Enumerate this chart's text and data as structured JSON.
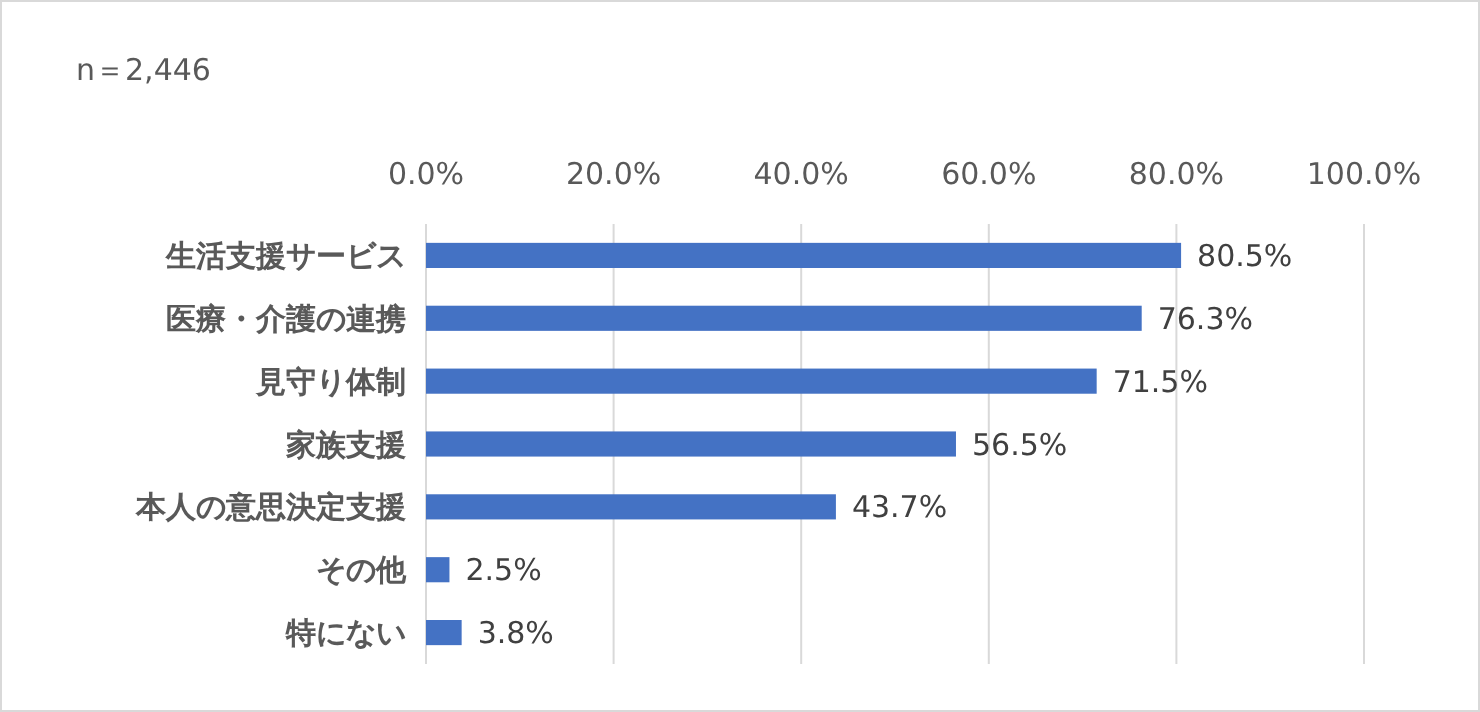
{
  "chart_data": {
    "type": "bar",
    "orientation": "horizontal",
    "annotations": [
      "n＝2,446"
    ],
    "categories": [
      "生活支援サービス",
      "医療・介護の連携",
      "見守り体制",
      "家族支援",
      "本人の意思決定支援",
      "その他",
      "特にない"
    ],
    "values": [
      80.5,
      76.3,
      71.5,
      56.5,
      43.7,
      2.5,
      3.8
    ],
    "value_labels": [
      "80.5%",
      "76.3%",
      "71.5%",
      "56.5%",
      "43.7%",
      "2.5%",
      "3.8%"
    ],
    "color": "#4472c4",
    "xlim": [
      0,
      100
    ],
    "xticks": [
      {
        "value": 0,
        "label": "0.0%"
      },
      {
        "value": 20,
        "label": "20.0%"
      },
      {
        "value": 40,
        "label": "40.0%"
      },
      {
        "value": 60,
        "label": "60.0%"
      },
      {
        "value": 80,
        "label": "80.0%"
      },
      {
        "value": 100,
        "label": "100.0%"
      }
    ],
    "grid": "x"
  }
}
